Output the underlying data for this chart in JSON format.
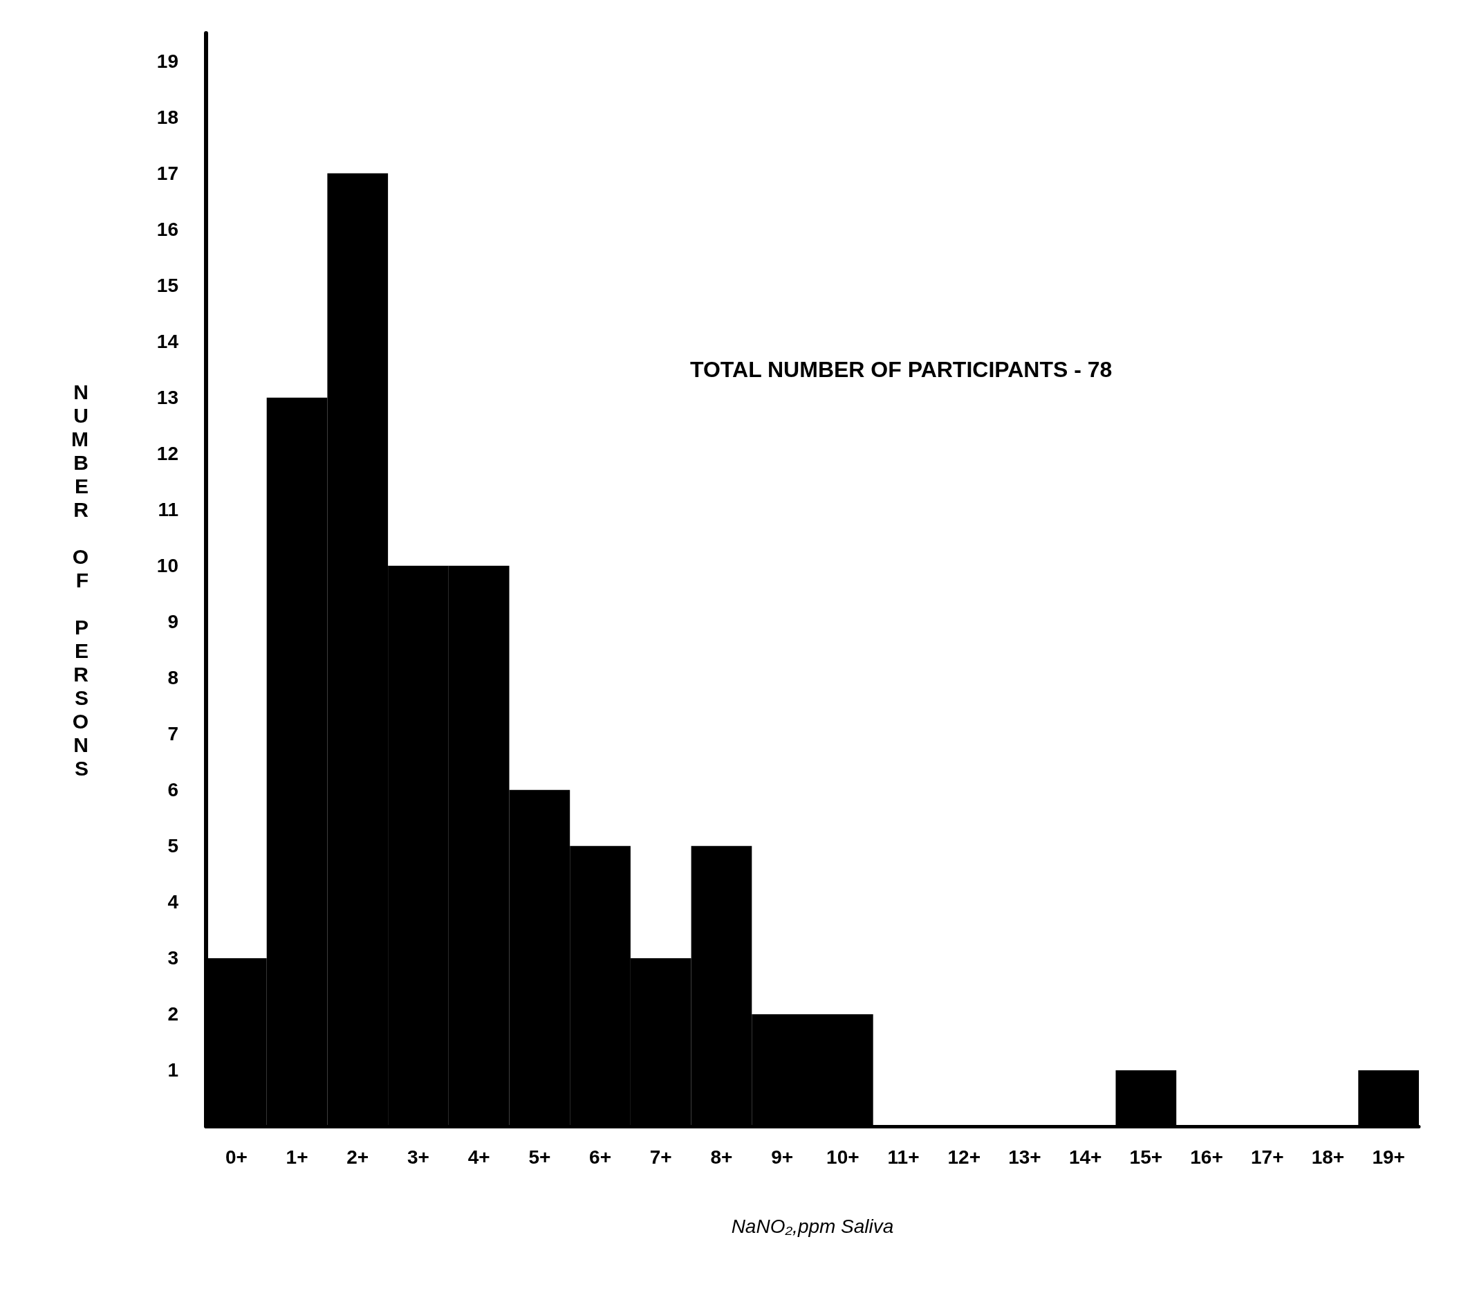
{
  "chart_data": {
    "type": "bar",
    "xlabel": "NaNO₂,ppm Saliva",
    "ylabel": "NUMBER OF PERSONS",
    "annotations": [
      "TOTAL NUMBER OF PARTICIPANTS - 78"
    ],
    "categories": [
      "0+",
      "1+",
      "2+",
      "3+",
      "4+",
      "5+",
      "6+",
      "7+",
      "8+",
      "9+",
      "10+",
      "11+",
      "12+",
      "13+",
      "14+",
      "15+",
      "16+",
      "17+",
      "18+",
      "19+"
    ],
    "values": [
      3,
      13,
      17,
      10,
      10,
      6,
      5,
      3,
      5,
      2,
      2,
      0,
      0,
      0,
      0,
      1,
      0,
      0,
      0,
      1
    ],
    "color": "#000000",
    "ylim": [
      0,
      19.5
    ],
    "yticks": [
      1,
      2,
      3,
      4,
      5,
      6,
      7,
      8,
      9,
      10,
      11,
      12,
      13,
      14,
      15,
      16,
      17,
      18,
      19
    ],
    "grid": false
  }
}
